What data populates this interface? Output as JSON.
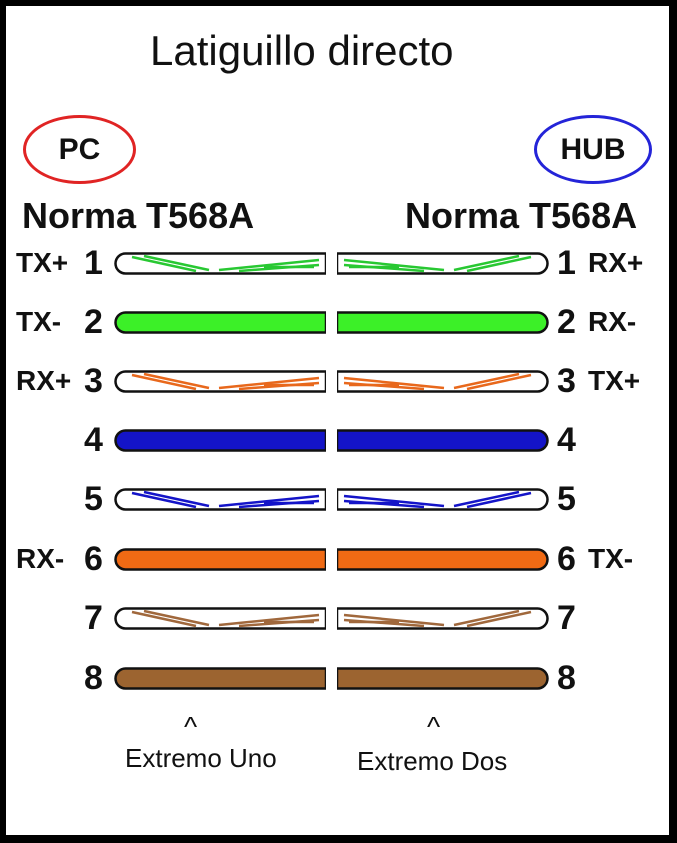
{
  "title": "Latiguillo directo",
  "devices": {
    "left": "PC",
    "right": "HUB"
  },
  "standards": {
    "left": "Norma T568A",
    "right": "Norma T568A"
  },
  "pins": [
    {
      "left_signal": "TX+",
      "left_num": "1",
      "right_num": "1",
      "right_signal": "RX+",
      "color": "#28c832",
      "striped": true
    },
    {
      "left_signal": "TX-",
      "left_num": "2",
      "right_num": "2",
      "right_signal": "RX-",
      "color": "#3cf028",
      "striped": false
    },
    {
      "left_signal": "RX+",
      "left_num": "3",
      "right_num": "3",
      "right_signal": "TX+",
      "color": "#e8681c",
      "striped": true
    },
    {
      "left_signal": "",
      "left_num": "4",
      "right_num": "4",
      "right_signal": "",
      "color": "#1414c8",
      "striped": false
    },
    {
      "left_signal": "",
      "left_num": "5",
      "right_num": "5",
      "right_signal": "",
      "color": "#1414c8",
      "striped": true
    },
    {
      "left_signal": "RX-",
      "left_num": "6",
      "right_num": "6",
      "right_signal": "TX-",
      "color": "#f06a14",
      "striped": false
    },
    {
      "left_signal": "",
      "left_num": "7",
      "right_num": "7",
      "right_signal": "",
      "color": "#a0683c",
      "striped": true
    },
    {
      "left_signal": "",
      "left_num": "8",
      "right_num": "8",
      "right_signal": "",
      "color": "#9c6430",
      "striped": false
    }
  ],
  "ends": {
    "left_caret": "^",
    "left": "Extremo Uno",
    "right_caret": "^",
    "right": "Extremo Dos"
  }
}
